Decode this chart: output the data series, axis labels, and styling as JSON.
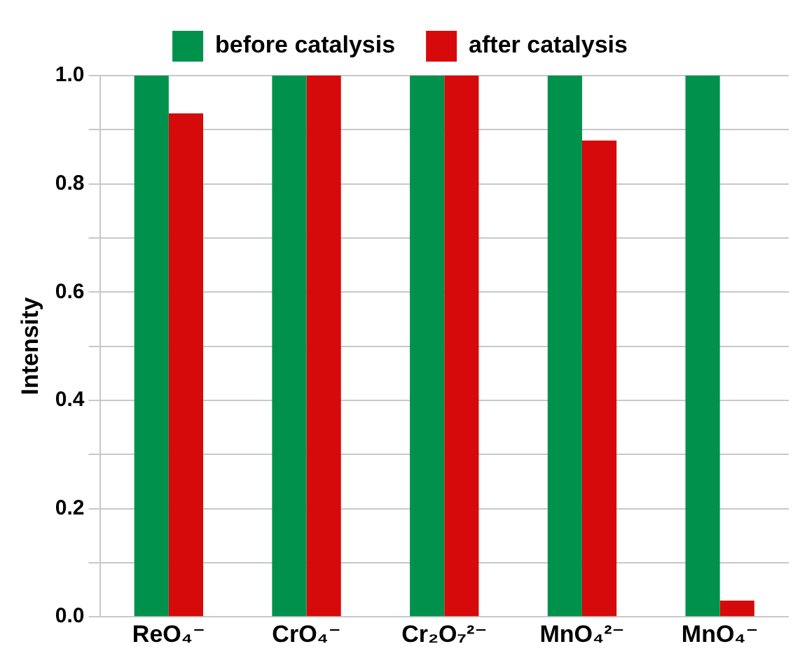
{
  "chart_data": {
    "type": "bar",
    "ylabel": "Intensity",
    "categories": [
      "ReO₄⁻",
      "CrO₄⁻",
      "Cr₂O₇²⁻",
      "MnO₄²⁻",
      "MnO₄⁻"
    ],
    "series": [
      {
        "name": "before catalysis",
        "color": "#00914d",
        "values": [
          1.0,
          1.0,
          1.0,
          1.0,
          1.0
        ]
      },
      {
        "name": "after catalysis",
        "color": "#d60a0a",
        "values": [
          0.93,
          1.0,
          1.0,
          0.88,
          0.03
        ]
      }
    ],
    "ylim": [
      0,
      1
    ],
    "yticks": [
      {
        "value": 0,
        "label": "0.0"
      },
      {
        "value": 0.1,
        "label": null
      },
      0.2,
      {
        "value": 0.3,
        "label": null
      },
      0.4,
      {
        "value": 0.5,
        "label": null
      },
      0.6,
      {
        "value": 0.7,
        "label": null
      },
      0.8,
      {
        "value": 0.9,
        "label": null
      },
      {
        "value": 1,
        "label": "1.0"
      }
    ],
    "grid": "y",
    "legend": "top"
  }
}
